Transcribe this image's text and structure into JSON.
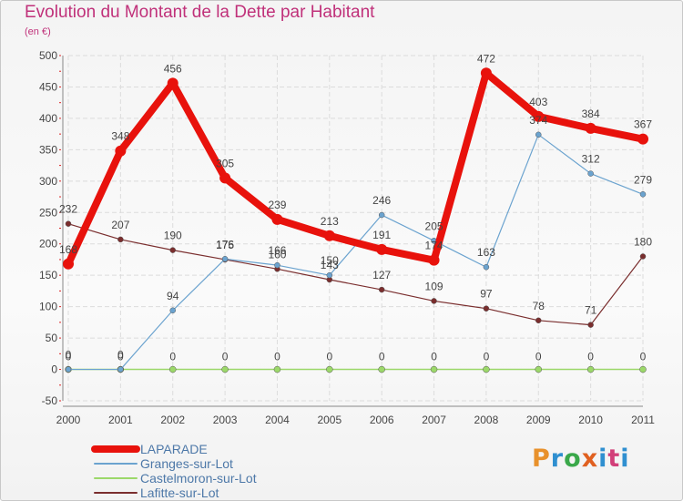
{
  "chart_data": {
    "type": "line",
    "title": "Evolution du Montant de la Dette par Habitant",
    "subtitle": "(en €)",
    "x": [
      "2000",
      "2001",
      "2002",
      "2003",
      "2004",
      "2005",
      "2006",
      "2007",
      "2008",
      "2009",
      "2010",
      "2011"
    ],
    "ylim": [
      -50,
      500
    ],
    "yticks": [
      -50,
      0,
      50,
      100,
      150,
      200,
      250,
      300,
      350,
      400,
      450,
      500
    ],
    "grid": true,
    "legend_position": "bottom-left",
    "series": [
      {
        "name": "LAPARADE",
        "color": "#e8120c",
        "values": [
          168,
          348,
          456,
          305,
          239,
          213,
          191,
          174,
          472,
          403,
          384,
          367
        ]
      },
      {
        "name": "Granges-sur-Lot",
        "color": "#6ba3cf",
        "values": [
          0,
          0,
          94,
          176,
          166,
          150,
          246,
          205,
          163,
          374,
          312,
          279
        ]
      },
      {
        "name": "Castelmoron-sur-Lot",
        "color": "#9cd86a",
        "values": [
          0,
          0,
          0,
          0,
          0,
          0,
          0,
          0,
          0,
          0,
          0,
          0
        ]
      },
      {
        "name": "Lafitte-sur-Lot",
        "color": "#7a2e2e",
        "values": [
          232,
          207,
          190,
          175,
          160,
          143,
          127,
          109,
          97,
          78,
          71,
          180
        ]
      }
    ]
  },
  "logo": {
    "text": "Proxiti"
  }
}
